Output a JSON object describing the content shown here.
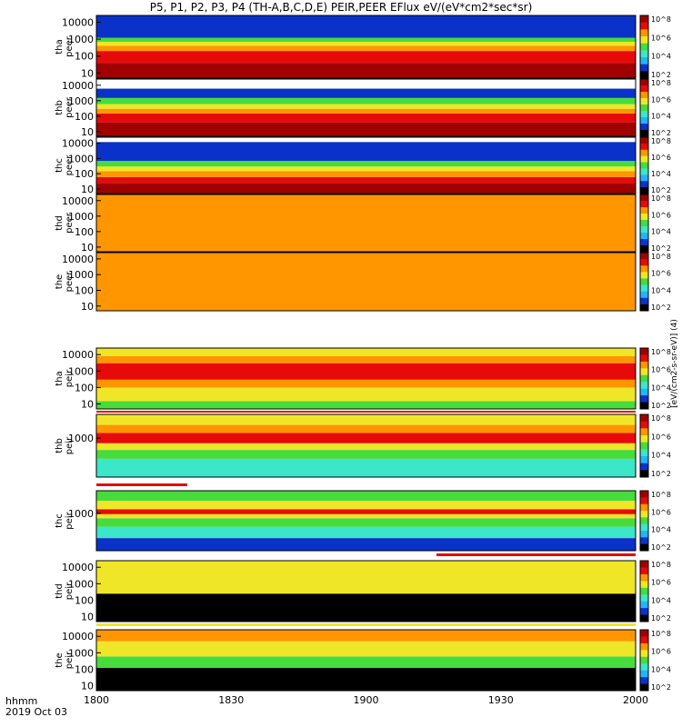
{
  "title": "P5, P1, P2, P3, P4 (TH-A,B,C,D,E) PEIR,PEER EFlux eV/(eV*cm2*sec*sr)",
  "time_axis": {
    "row_label": "hhmm",
    "date_label": "2019 Oct 03",
    "ticks": [
      "1800",
      "1830",
      "1900",
      "1930",
      "2000"
    ],
    "tick_minutes": [
      0,
      30,
      60,
      90,
      120
    ]
  },
  "colorbar_unit_label": "[eV/(cm2-s-sr-eV)] (4)",
  "colorbar_ticks": [
    "10^8",
    "10^6",
    "10^4",
    "10^2"
  ],
  "colors": {
    "black": "#000000",
    "blue": "#0a32c8",
    "cyan": "#23b4ff",
    "aqua": "#3ce6c8",
    "green": "#46dc3c",
    "yellow": "#f0e628",
    "orange": "#ff9600",
    "red": "#e60a0a",
    "darkred": "#a00000"
  },
  "chart_data": [
    {
      "type": "heatmap",
      "probe": "tha",
      "species": "peer",
      "ylabel": "tha peer",
      "yscale": "log",
      "yticks": [
        "10000",
        "1000",
        "100",
        "10"
      ],
      "ylim": [
        5,
        25000
      ],
      "x_range": [
        "18:00",
        "20:00"
      ],
      "bands": [
        {
          "e_lo": 5,
          "e_hi": 40,
          "color": "darkred"
        },
        {
          "e_lo": 40,
          "e_hi": 200,
          "color": "red"
        },
        {
          "e_lo": 200,
          "e_hi": 400,
          "color": "orange"
        },
        {
          "e_lo": 400,
          "e_hi": 700,
          "color": "yellow"
        },
        {
          "e_lo": 700,
          "e_hi": 1200,
          "color": "green"
        },
        {
          "e_lo": 1200,
          "e_hi": 25000,
          "color": "blue"
        }
      ]
    },
    {
      "type": "heatmap",
      "probe": "thb",
      "species": "peer",
      "ylabel": "thb peer",
      "yscale": "log",
      "yticks": [
        "10000",
        "1000",
        "100",
        "10"
      ],
      "ylim": [
        5,
        25000
      ],
      "x_range": [
        "18:00",
        "20:00"
      ],
      "bands": [
        {
          "e_lo": 5,
          "e_hi": 40,
          "color": "darkred"
        },
        {
          "e_lo": 40,
          "e_hi": 150,
          "color": "red"
        },
        {
          "e_lo": 150,
          "e_hi": 300,
          "color": "orange"
        },
        {
          "e_lo": 300,
          "e_hi": 600,
          "color": "yellow"
        },
        {
          "e_lo": 600,
          "e_hi": 1500,
          "color": "green"
        },
        {
          "e_lo": 1500,
          "e_hi": 6000,
          "color": "blue"
        }
      ]
    },
    {
      "type": "heatmap",
      "probe": "thc",
      "species": "peer",
      "ylabel": "thc peer",
      "yscale": "log",
      "yticks": [
        "10000",
        "1000",
        "100",
        "10"
      ],
      "ylim": [
        5,
        25000
      ],
      "x_range": [
        "18:00",
        "20:00"
      ],
      "bands": [
        {
          "e_lo": 5,
          "e_hi": 25,
          "color": "darkred"
        },
        {
          "e_lo": 25,
          "e_hi": 60,
          "color": "red"
        },
        {
          "e_lo": 60,
          "e_hi": 150,
          "color": "orange"
        },
        {
          "e_lo": 150,
          "e_hi": 300,
          "color": "yellow"
        },
        {
          "e_lo": 300,
          "e_hi": 700,
          "color": "green"
        },
        {
          "e_lo": 700,
          "e_hi": 12000,
          "color": "blue"
        }
      ]
    },
    {
      "type": "heatmap",
      "probe": "thd",
      "species": "peer",
      "ylabel": "thd peer",
      "yscale": "log",
      "yticks": [
        "10000",
        "1000",
        "100",
        "10"
      ],
      "ylim": [
        5,
        25000
      ],
      "x_range": [
        "18:00",
        "20:00"
      ],
      "bands": [
        {
          "e_lo": 5,
          "e_hi": 25000,
          "color": "orange"
        }
      ]
    },
    {
      "type": "heatmap",
      "probe": "the",
      "species": "peer",
      "ylabel": "the peer",
      "yscale": "log",
      "yticks": [
        "10000",
        "1000",
        "100",
        "10"
      ],
      "ylim": [
        5,
        25000
      ],
      "x_range": [
        "18:00",
        "20:00"
      ],
      "bands": [
        {
          "e_lo": 5,
          "e_hi": 25000,
          "color": "orange"
        }
      ]
    },
    {
      "type": "heatmap",
      "probe": "tha",
      "species": "peir",
      "ylabel": "tha peir",
      "yscale": "log",
      "yticks": [
        "10000",
        "1000",
        "100",
        "10"
      ],
      "ylim": [
        5,
        25000
      ],
      "x_range": [
        "18:00",
        "20:00"
      ],
      "bands": [
        {
          "e_lo": 5,
          "e_hi": 15,
          "color": "green"
        },
        {
          "e_lo": 15,
          "e_hi": 100,
          "color": "yellow"
        },
        {
          "e_lo": 100,
          "e_hi": 300,
          "color": "orange"
        },
        {
          "e_lo": 300,
          "e_hi": 3000,
          "color": "red"
        },
        {
          "e_lo": 3000,
          "e_hi": 8000,
          "color": "orange"
        },
        {
          "e_lo": 8000,
          "e_hi": 25000,
          "color": "yellow"
        }
      ]
    },
    {
      "type": "heatmap",
      "probe": "thb",
      "species": "peir",
      "ylabel": "thb peir",
      "yscale": "log",
      "yticks": [
        "1000"
      ],
      "ylim": [
        5,
        25000
      ],
      "x_range": [
        "18:00",
        "20:00"
      ],
      "bands": [
        {
          "e_lo": 5,
          "e_hi": 60,
          "color": "aqua"
        },
        {
          "e_lo": 60,
          "e_hi": 200,
          "color": "green"
        },
        {
          "e_lo": 200,
          "e_hi": 500,
          "color": "yellow"
        },
        {
          "e_lo": 500,
          "e_hi": 2000,
          "color": "red"
        },
        {
          "e_lo": 2000,
          "e_hi": 6000,
          "color": "orange"
        },
        {
          "e_lo": 6000,
          "e_hi": 25000,
          "color": "yellow"
        }
      ]
    },
    {
      "type": "heatmap",
      "probe": "thc",
      "species": "peir",
      "ylabel": "thc peir",
      "yscale": "log",
      "yticks": [
        "1000"
      ],
      "ylim": [
        5,
        25000
      ],
      "x_range": [
        "18:00",
        "20:00"
      ],
      "bands": [
        {
          "e_lo": 5,
          "e_hi": 30,
          "color": "blue"
        },
        {
          "e_lo": 30,
          "e_hi": 150,
          "color": "aqua"
        },
        {
          "e_lo": 150,
          "e_hi": 500,
          "color": "green"
        },
        {
          "e_lo": 500,
          "e_hi": 900,
          "color": "yellow"
        },
        {
          "e_lo": 900,
          "e_hi": 1800,
          "color": "red"
        },
        {
          "e_lo": 1800,
          "e_hi": 6000,
          "color": "yellow"
        },
        {
          "e_lo": 6000,
          "e_hi": 25000,
          "color": "green"
        }
      ]
    },
    {
      "type": "heatmap",
      "probe": "thd",
      "species": "peir",
      "ylabel": "thd peir",
      "yscale": "log",
      "yticks": [
        "10000",
        "1000",
        "100",
        "10"
      ],
      "ylim": [
        5,
        25000
      ],
      "x_range": [
        "18:00",
        "20:00"
      ],
      "bands": [
        {
          "e_lo": 5,
          "e_hi": 250,
          "color": "black"
        },
        {
          "e_lo": 250,
          "e_hi": 25000,
          "color": "yellow"
        }
      ]
    },
    {
      "type": "heatmap",
      "probe": "the",
      "species": "peir",
      "ylabel": "the peir",
      "yscale": "log",
      "yticks": [
        "10000",
        "1000",
        "100",
        "10"
      ],
      "ylim": [
        5,
        25000
      ],
      "x_range": [
        "18:00",
        "20:00"
      ],
      "bands": [
        {
          "e_lo": 5,
          "e_hi": 120,
          "color": "black"
        },
        {
          "e_lo": 120,
          "e_hi": 600,
          "color": "green"
        },
        {
          "e_lo": 600,
          "e_hi": 5000,
          "color": "yellow"
        },
        {
          "e_lo": 5000,
          "e_hi": 25000,
          "color": "orange"
        }
      ]
    }
  ]
}
